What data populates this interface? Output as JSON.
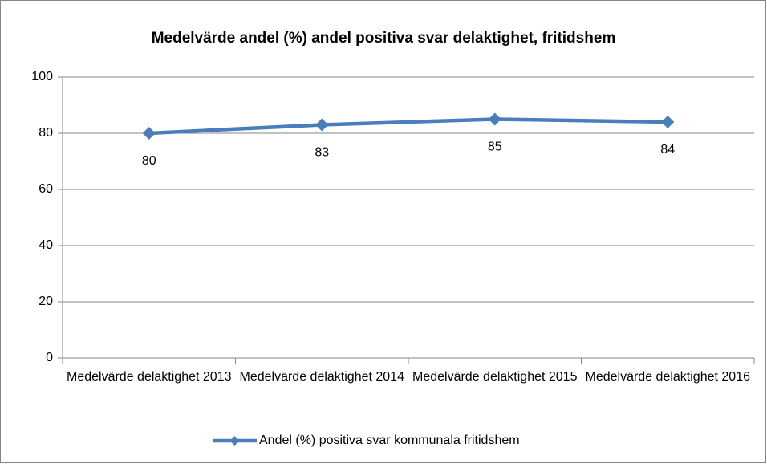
{
  "chart_data": {
    "type": "line",
    "title": "Medelvärde andel (%) andel positiva svar delaktighet, fritidshem",
    "categories": [
      "Medelvärde delaktighet 2013",
      "Medelvärde delaktighet 2014",
      "Medelvärde delaktighet 2015",
      "Medelvärde delaktighet 2016"
    ],
    "series": [
      {
        "name": "Andel (%) positiva svar kommunala fritidshem",
        "color": "#4a7ebb",
        "values": [
          80,
          83,
          85,
          84
        ]
      }
    ],
    "ylim": [
      0,
      100
    ],
    "yticks": [
      0,
      20,
      40,
      60,
      80,
      100
    ],
    "grid": true,
    "legend": "bottom"
  }
}
